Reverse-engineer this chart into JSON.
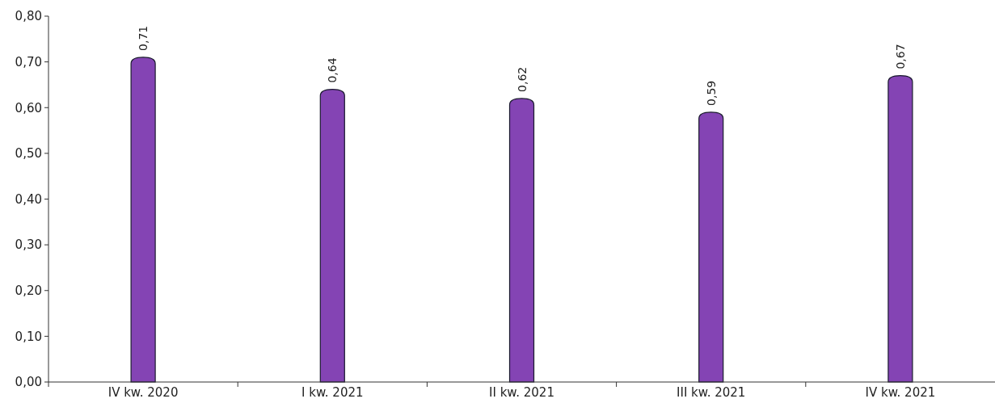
{
  "chart_data": {
    "type": "bar",
    "categories": [
      "IV kw. 2020",
      "I kw. 2021",
      "II kw. 2021",
      "III kw. 2021",
      "IV kw. 2021"
    ],
    "values": [
      0.71,
      0.64,
      0.62,
      0.59,
      0.67
    ],
    "value_labels": [
      "0,71",
      "0,64",
      "0,62",
      "0,59",
      "0,67"
    ],
    "color": "#8444b4",
    "ylim": [
      0,
      0.8
    ],
    "yticks": [
      {
        "value": 0,
        "label": "0,00"
      },
      {
        "value": 0.1,
        "label": "0,10"
      },
      {
        "value": 0.2,
        "label": "0,20"
      },
      {
        "value": 0.3,
        "label": "0,30"
      },
      {
        "value": 0.4,
        "label": "0,40"
      },
      {
        "value": 0.5,
        "label": "0,50"
      },
      {
        "value": 0.6,
        "label": "0,60"
      },
      {
        "value": 0.7,
        "label": "0,70"
      },
      {
        "value": 0.8,
        "label": "0,80"
      }
    ],
    "grid": false
  }
}
